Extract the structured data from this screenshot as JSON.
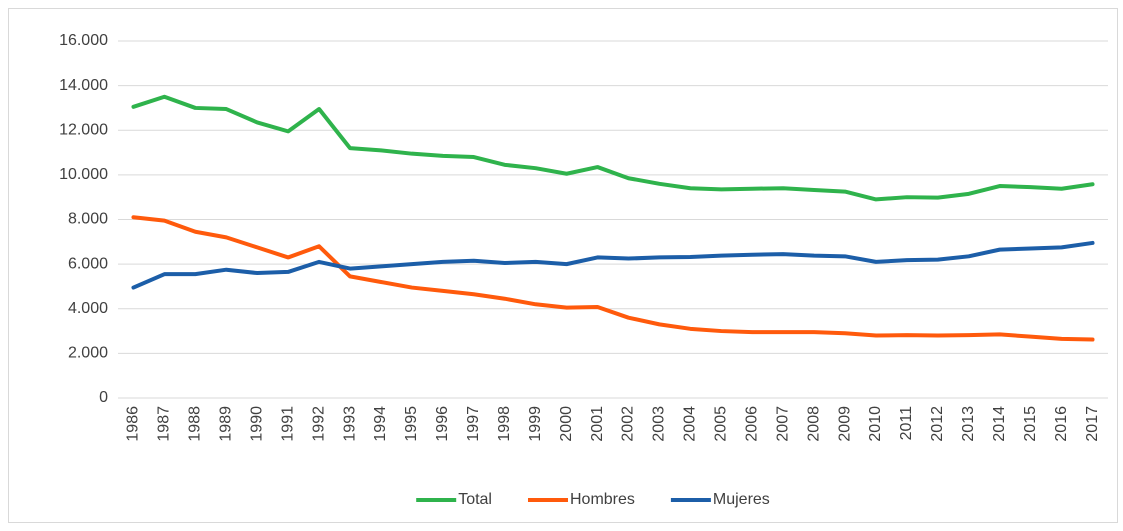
{
  "chart_data": {
    "type": "line",
    "categories": [
      "1986",
      "1987",
      "1988",
      "1989",
      "1990",
      "1991",
      "1992",
      "1993",
      "1994",
      "1995",
      "1996",
      "1997",
      "1998",
      "1999",
      "2000",
      "2001",
      "2002",
      "2003",
      "2004",
      "2005",
      "2006",
      "2007",
      "2008",
      "2009",
      "2010",
      "2011",
      "2012",
      "2013",
      "2014",
      "2015",
      "2016",
      "2017"
    ],
    "series": [
      {
        "name": "Total",
        "color": "#2fb34c",
        "values": [
          13050,
          13500,
          13000,
          12950,
          12350,
          11950,
          12950,
          11200,
          11100,
          10950,
          10850,
          10800,
          10450,
          10300,
          10050,
          10350,
          9850,
          9600,
          9400,
          9350,
          9380,
          9400,
          9320,
          9250,
          8900,
          9000,
          8980,
          9150,
          9500,
          9450,
          9380,
          9580
        ]
      },
      {
        "name": "Hombres",
        "color": "#ff5a0c",
        "values": [
          8100,
          7950,
          7450,
          7200,
          6750,
          6300,
          6800,
          5450,
          5200,
          4950,
          4800,
          4650,
          4450,
          4200,
          4050,
          4080,
          3600,
          3300,
          3100,
          3000,
          2950,
          2950,
          2950,
          2900,
          2800,
          2820,
          2800,
          2820,
          2850,
          2750,
          2650,
          2620
        ]
      },
      {
        "name": "Mujeres",
        "color": "#1c5ea8",
        "values": [
          4950,
          5550,
          5550,
          5750,
          5600,
          5650,
          6100,
          5800,
          5900,
          6000,
          6100,
          6150,
          6050,
          6100,
          6000,
          6300,
          6250,
          6300,
          6320,
          6380,
          6420,
          6450,
          6380,
          6350,
          6100,
          6180,
          6200,
          6350,
          6650,
          6700,
          6750,
          6950
        ]
      }
    ],
    "ylim": [
      0,
      16000
    ],
    "yticks": [
      0,
      {
        "value": 2000,
        "label": "2.000"
      },
      {
        "value": 4000,
        "label": "4.000"
      },
      {
        "value": 6000,
        "label": "6.000"
      },
      {
        "value": 8000,
        "label": "8.000"
      },
      {
        "value": 10000,
        "label": "10.000"
      },
      {
        "value": 12000,
        "label": "12.000"
      },
      {
        "value": 14000,
        "label": "14.000"
      },
      {
        "value": 16000,
        "label": "16.000"
      }
    ],
    "grid": true,
    "legend": "bottom"
  }
}
